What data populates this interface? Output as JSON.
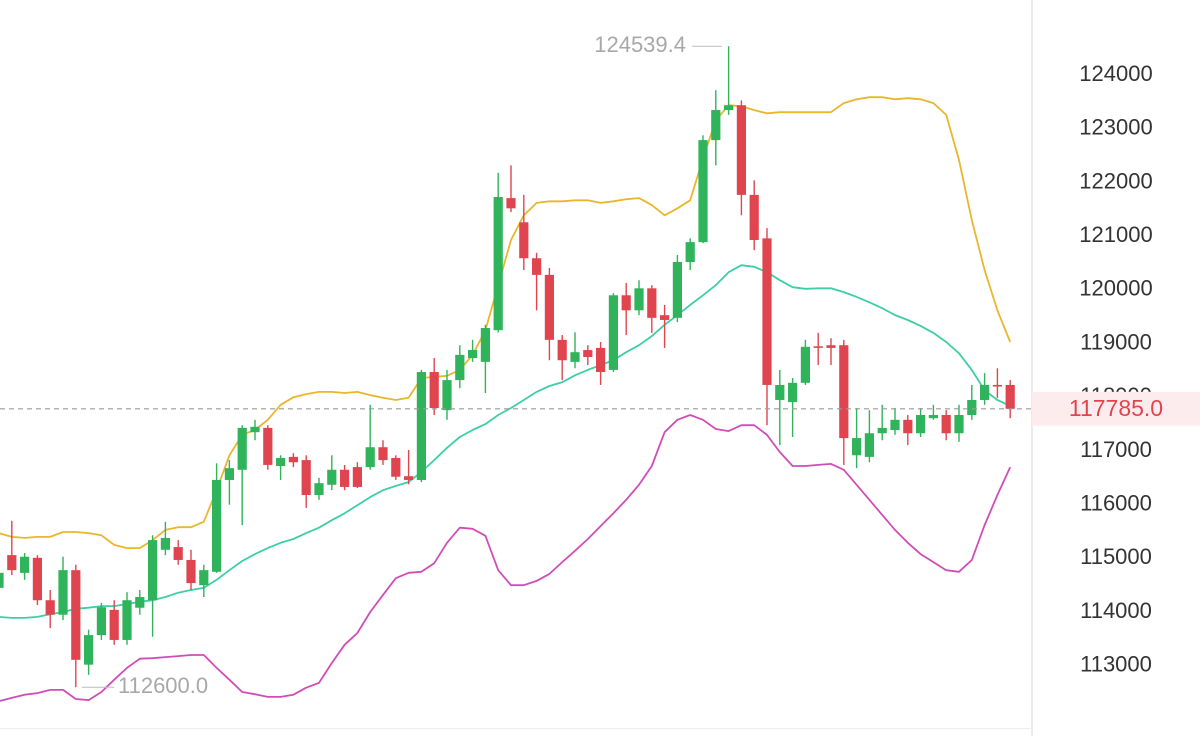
{
  "chart_data": {
    "type": "candlestick",
    "up_color": "#2fb35b",
    "down_color": "#e0454f",
    "ylim": [
      111840,
      125400
    ],
    "yticks": [
      113000,
      114000,
      115000,
      116000,
      117000,
      118000,
      119000,
      120000,
      121000,
      122000,
      123000,
      124000
    ],
    "grid": false,
    "open": [
      114450,
      115060,
      114730,
      115010,
      114220,
      113950,
      114780,
      113020,
      113570,
      114040,
      113480,
      114080,
      114220,
      115160,
      115210,
      114970,
      114500,
      114750,
      116460,
      116650,
      117350,
      117430,
      116720,
      116890,
      116830,
      116180,
      116370,
      116650,
      116700,
      116700,
      117070,
      116870,
      116530,
      116460,
      118470,
      117760,
      118320,
      118730,
      118660,
      119250,
      121710,
      121260,
      120590,
      120280,
      119070,
      118660,
      118880,
      118920,
      118510,
      119900,
      119620,
      120030,
      119530,
      119480,
      120520,
      120890,
      122790,
      123350,
      123440,
      121770,
      120960,
      117950,
      117910,
      118270,
      118950,
      118970,
      118970,
      116920,
      116890,
      117330,
      117390,
      117580,
      117330,
      117610,
      117670,
      117330,
      117670,
      117950,
      118230,
      118230
    ],
    "high": [
      114880,
      115700,
      115100,
      115060,
      114410,
      115030,
      114880,
      113670,
      114170,
      114220,
      114370,
      114410,
      115430,
      115680,
      115340,
      115160,
      114880,
      116770,
      116830,
      117480,
      117580,
      117480,
      116920,
      116960,
      116920,
      116500,
      116920,
      116740,
      116790,
      117860,
      117200,
      116920,
      117020,
      118510,
      118730,
      118510,
      118970,
      119070,
      119350,
      122180,
      122320,
      121770,
      120690,
      120410,
      119160,
      119210,
      118970,
      119030,
      119940,
      120130,
      120180,
      120090,
      119720,
      120650,
      120960,
      122880,
      123720,
      124539.4,
      123530,
      122040,
      121150,
      118510,
      118360,
      119070,
      119200,
      119100,
      119070,
      117800,
      117760,
      117860,
      117800,
      117670,
      117800,
      117860,
      117760,
      117860,
      118230,
      118450,
      118540,
      118320
    ],
    "low": [
      114410,
      114690,
      114600,
      114130,
      113700,
      113850,
      112600,
      112830,
      113480,
      113390,
      113390,
      113950,
      113540,
      115060,
      114880,
      114410,
      114280,
      114730,
      116000,
      115620,
      117200,
      116650,
      116460,
      116700,
      115940,
      116090,
      116270,
      116270,
      116310,
      116650,
      116740,
      116460,
      116380,
      116420,
      117670,
      117580,
      118170,
      118660,
      118080,
      119210,
      121450,
      120370,
      119620,
      118690,
      118320,
      118540,
      118600,
      118230,
      118470,
      119160,
      119530,
      119200,
      118920,
      119400,
      120370,
      120870,
      122320,
      123260,
      121390,
      120740,
      117480,
      117110,
      117260,
      118230,
      118600,
      118600,
      116740,
      116680,
      116790,
      117200,
      117300,
      117110,
      117260,
      117580,
      117200,
      117170,
      117580,
      117860,
      117990,
      117610
    ],
    "close": [
      114730,
      114780,
      115030,
      114220,
      113950,
      114780,
      113110,
      113570,
      114090,
      113480,
      114220,
      114280,
      115340,
      115380,
      114970,
      114540,
      114780,
      116460,
      116680,
      117430,
      117450,
      116740,
      116870,
      116790,
      116180,
      116400,
      116650,
      116330,
      116330,
      117070,
      116830,
      116520,
      116460,
      118470,
      117800,
      118320,
      118790,
      118880,
      119290,
      121730,
      121520,
      120590,
      120280,
      119070,
      118690,
      118840,
      118750,
      118470,
      119900,
      119620,
      120030,
      119480,
      119440,
      120520,
      120890,
      122790,
      123350,
      123440,
      121770,
      120930,
      118230,
      118230,
      118270,
      118940,
      118920,
      118920,
      117240,
      117240,
      117330,
      117430,
      117580,
      117330,
      117670,
      117670,
      117330,
      117670,
      117950,
      118230,
      118210,
      117785
    ],
    "bands": [
      {
        "color": "#e9b62c",
        "values": [
          115470,
          115400,
          115380,
          115400,
          115400,
          115490,
          115490,
          115470,
          115430,
          115250,
          115190,
          115190,
          115340,
          115530,
          115580,
          115580,
          115680,
          116270,
          116920,
          117300,
          117390,
          117580,
          117860,
          118000,
          118060,
          118100,
          118100,
          118080,
          118100,
          118040,
          117990,
          117950,
          117990,
          118360,
          118380,
          118400,
          118510,
          118790,
          119250,
          120090,
          120930,
          121390,
          121620,
          121650,
          121650,
          121670,
          121670,
          121620,
          121650,
          121690,
          121710,
          121580,
          121390,
          121520,
          121670,
          122450,
          123160,
          123440,
          123420,
          123350,
          123290,
          123310,
          123310,
          123310,
          123310,
          123310,
          123480,
          123550,
          123590,
          123590,
          123550,
          123570,
          123550,
          123480,
          123260,
          122420,
          121300,
          120370,
          119620,
          119030
        ]
      },
      {
        "color": "#3ccfa6",
        "values": [
          113910,
          113890,
          113890,
          113910,
          113960,
          114000,
          114060,
          114080,
          114110,
          114110,
          114150,
          114190,
          114220,
          114280,
          114360,
          114410,
          114450,
          114600,
          114780,
          114950,
          115080,
          115190,
          115290,
          115360,
          115470,
          115570,
          115710,
          115840,
          115990,
          116140,
          116270,
          116350,
          116420,
          116610,
          116830,
          117060,
          117260,
          117390,
          117500,
          117670,
          117800,
          117950,
          118100,
          118210,
          118280,
          118410,
          118510,
          118600,
          118690,
          118840,
          118970,
          119140,
          119350,
          119530,
          119720,
          119900,
          120090,
          120330,
          120460,
          120430,
          120330,
          120180,
          120050,
          120020,
          120030,
          120030,
          119960,
          119870,
          119770,
          119660,
          119530,
          119440,
          119330,
          119200,
          119030,
          118820,
          118510,
          118130,
          117950,
          117840
        ]
      },
      {
        "color": "#d04db8",
        "values": [
          112340,
          112400,
          112460,
          112490,
          112550,
          112550,
          112380,
          112360,
          112510,
          112740,
          112960,
          113130,
          113140,
          113160,
          113180,
          113200,
          113200,
          112960,
          112740,
          112510,
          112470,
          112420,
          112420,
          112460,
          112590,
          112680,
          113050,
          113390,
          113610,
          114000,
          114320,
          114630,
          114730,
          114750,
          114910,
          115290,
          115570,
          115550,
          115420,
          114780,
          114500,
          114500,
          114580,
          114710,
          114930,
          115140,
          115360,
          115600,
          115840,
          116090,
          116370,
          116720,
          117350,
          117580,
          117670,
          117580,
          117410,
          117370,
          117480,
          117480,
          117300,
          116980,
          116720,
          116720,
          116740,
          116760,
          116650,
          116370,
          116090,
          115810,
          115530,
          115290,
          115080,
          114930,
          114780,
          114750,
          114970,
          115620,
          116180,
          116700
        ]
      }
    ],
    "high_label": 124539.4,
    "low_label": {
      "value": 112600,
      "label": "112600.0"
    },
    "last_price": {
      "value": 117785,
      "label": "117785.0"
    }
  }
}
